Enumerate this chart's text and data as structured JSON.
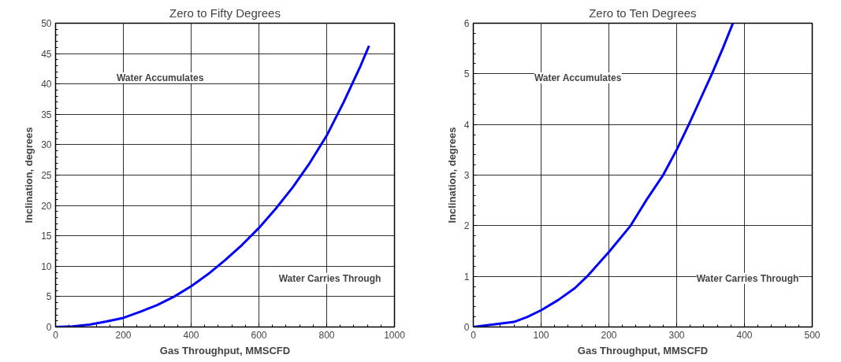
{
  "chart_data": [
    {
      "type": "line",
      "title": "Zero to Fifty Degrees",
      "xlabel": "Gas Throughput, MMSCFD",
      "ylabel": "Inclination, degrees",
      "x": [
        0,
        50,
        100,
        150,
        200,
        250,
        300,
        350,
        400,
        450,
        500,
        550,
        600,
        650,
        700,
        750,
        800,
        850,
        900,
        925
      ],
      "series": [
        {
          "color": "#0000ff",
          "values": [
            0,
            0.1,
            0.4,
            0.9,
            1.5,
            2.5,
            3.6,
            5,
            6.7,
            8.7,
            11,
            13.5,
            16.3,
            19.5,
            23,
            27,
            31.5,
            37,
            43,
            46.3
          ]
        }
      ],
      "xlim": [
        0,
        1000
      ],
      "ylim": [
        0,
        50
      ],
      "xticks": [
        0,
        200,
        400,
        600,
        800,
        1000
      ],
      "yticks": [
        0,
        5,
        10,
        15,
        20,
        25,
        30,
        35,
        40,
        45,
        50
      ],
      "grid": true,
      "line_style": "solid",
      "annotations": [
        "Water Accumulates",
        "Water Carries Through"
      ]
    },
    {
      "type": "line",
      "title": "Zero to Ten Degrees",
      "xlabel": "Gas Throughput, MMSCFD",
      "ylabel": "Inclination, degrees",
      "x": [
        0,
        60,
        80,
        100,
        125,
        150,
        168,
        200,
        232,
        255,
        280,
        300,
        318,
        335,
        352,
        368,
        383
      ],
      "series": [
        {
          "color": "#0000ff",
          "values": [
            0,
            0.1,
            0.2,
            0.33,
            0.53,
            0.77,
            1,
            1.48,
            2,
            2.5,
            3,
            3.5,
            4,
            4.5,
            5,
            5.5,
            6
          ]
        }
      ],
      "xlim": [
        0,
        500
      ],
      "ylim": [
        0,
        6
      ],
      "xticks": [
        0,
        100,
        200,
        300,
        400,
        500
      ],
      "yticks": [
        0,
        1,
        2,
        3,
        4,
        5,
        6
      ],
      "grid": true,
      "line_style": "solid",
      "annotations": [
        "Water Accumulates",
        "Water Carries Through"
      ]
    }
  ]
}
